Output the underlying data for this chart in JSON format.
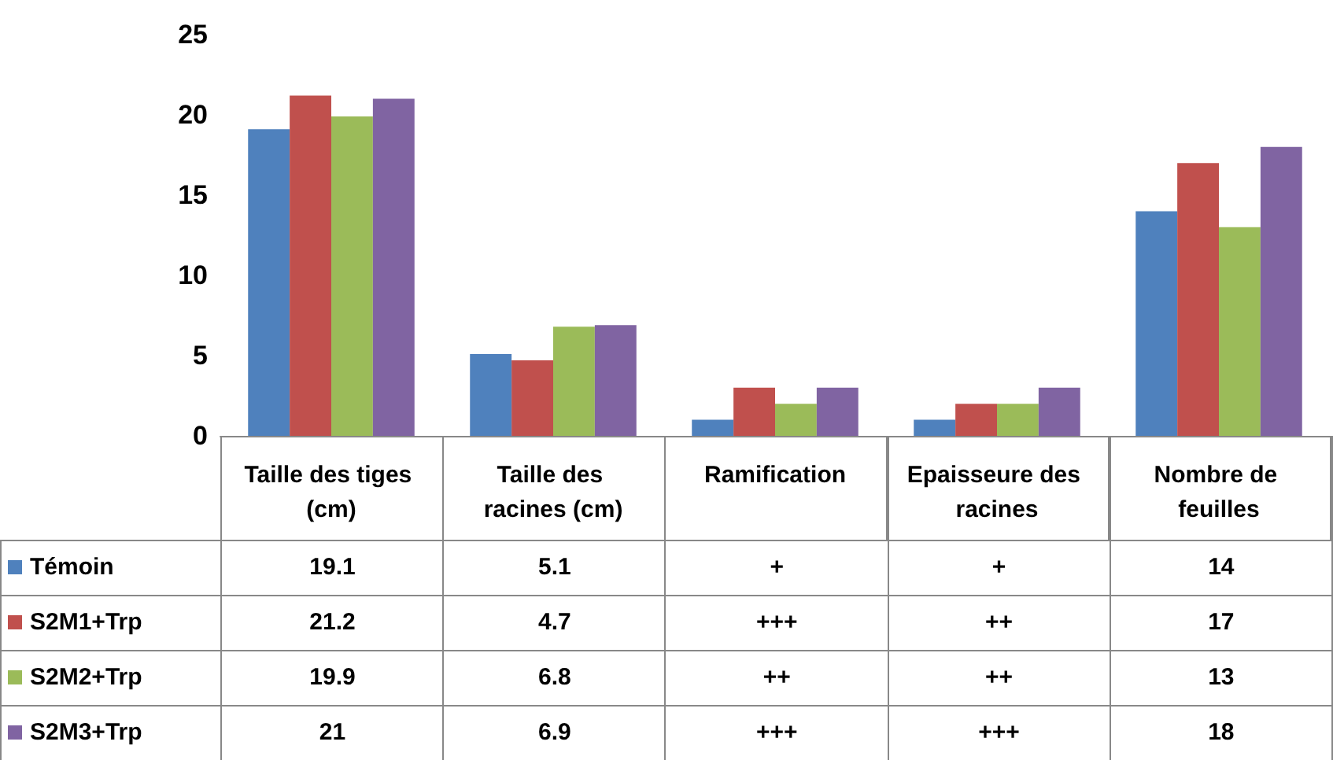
{
  "chart_data": {
    "type": "bar",
    "categories": [
      "Taille des tiges (cm)",
      "Taille des racines (cm)",
      "Ramification",
      "Epaisseure des racines",
      "Nombre de feuilles"
    ],
    "series": [
      {
        "name": "Témoin",
        "color": "#4f81bd",
        "values": [
          19.1,
          5.1,
          1,
          1,
          14
        ],
        "value_labels": [
          "19.1",
          "5.1",
          "+",
          "+",
          "14"
        ]
      },
      {
        "name": "S2M1+Trp",
        "color": "#c0504d",
        "values": [
          21.2,
          4.7,
          3,
          2,
          17
        ],
        "value_labels": [
          "21.2",
          "4.7",
          "+++",
          "++",
          "17"
        ]
      },
      {
        "name": "S2M2+Trp",
        "color": "#9bbb59",
        "values": [
          19.9,
          6.8,
          2,
          2,
          13
        ],
        "value_labels": [
          "19.9",
          "6.8",
          "++",
          "++",
          "13"
        ]
      },
      {
        "name": "S2M3+Trp",
        "color": "#8064a2",
        "values": [
          21,
          6.9,
          3,
          3,
          18
        ],
        "value_labels": [
          "21",
          "6.9",
          "+++",
          "+++",
          "18"
        ]
      }
    ],
    "ylim": [
      0,
      25
    ],
    "yticks": [
      0,
      5,
      10,
      15,
      20,
      25
    ],
    "grid": false,
    "legend": "bottom"
  }
}
